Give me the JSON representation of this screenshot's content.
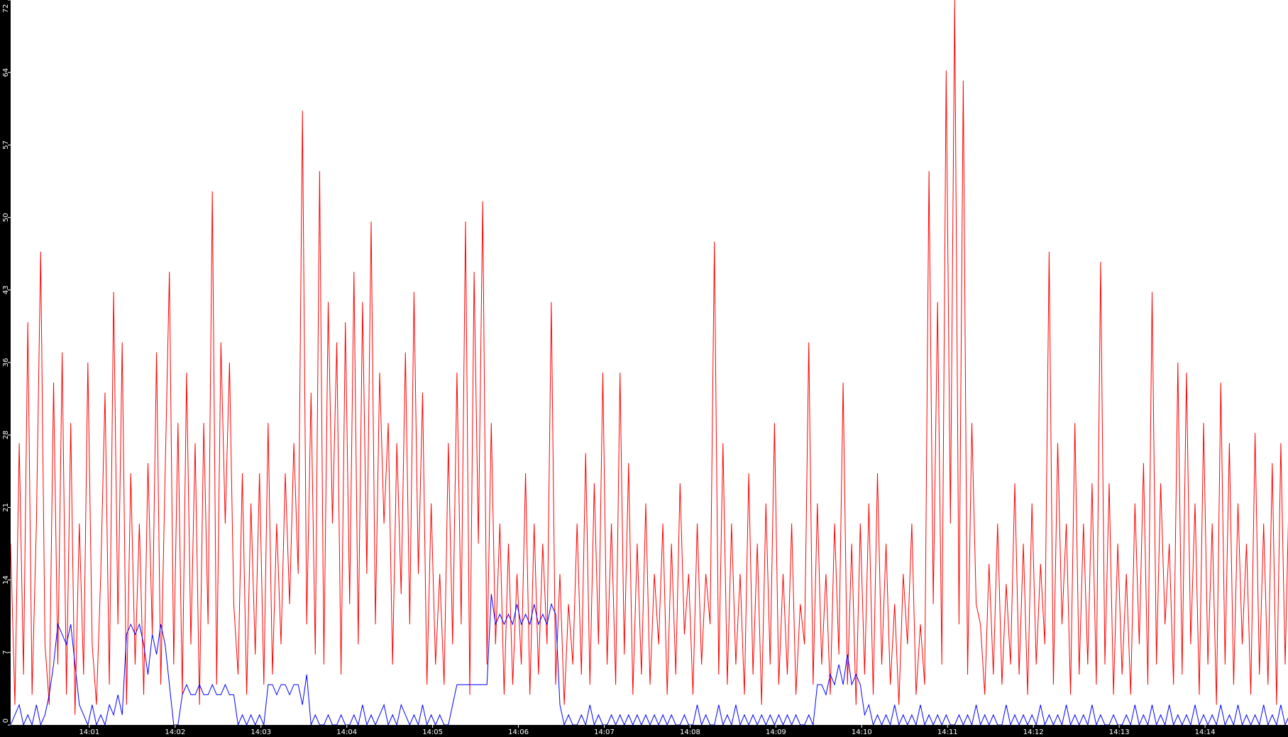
{
  "chart_data": {
    "type": "line",
    "title": "",
    "xlabel": "",
    "ylabel": "",
    "background": "#ffffff",
    "axis_background": "#000000",
    "grid": false,
    "legend": "none",
    "xlim": [
      "14:00:05",
      "14:14:58"
    ],
    "ylim": [
      0,
      72
    ],
    "x_tick_labels": [
      "14:01",
      "14:02",
      "14:03",
      "14:04",
      "14:05",
      "14:06",
      "14:07",
      "14:08",
      "14:09",
      "14:10",
      "14:11",
      "14:12",
      "14:13",
      "14:14"
    ],
    "y_tick_labels": [
      "0",
      "7",
      "14",
      "21",
      "28",
      "36",
      "43",
      "50",
      "57",
      "64",
      "72"
    ],
    "x": {
      "start": "14:00:05",
      "step_seconds": 3
    },
    "series": [
      {
        "color": "#ff0000",
        "values": [
          18,
          2,
          28,
          5,
          40,
          3,
          20,
          47,
          8,
          2,
          34,
          6,
          37,
          3,
          30,
          1,
          20,
          5,
          36,
          8,
          2,
          15,
          33,
          4,
          43,
          10,
          38,
          2,
          25,
          6,
          20,
          3,
          26,
          9,
          37,
          4,
          25,
          45,
          6,
          30,
          3,
          35,
          8,
          28,
          2,
          30,
          10,
          53,
          4,
          38,
          20,
          36,
          12,
          5,
          25,
          3,
          22,
          7,
          25,
          4,
          30,
          5,
          20,
          8,
          25,
          12,
          28,
          15,
          61,
          10,
          33,
          7,
          55,
          6,
          42,
          20,
          38,
          5,
          40,
          12,
          45,
          8,
          42,
          15,
          50,
          10,
          35,
          20,
          30,
          6,
          28,
          13,
          37,
          10,
          43,
          15,
          33,
          4,
          22,
          6,
          15,
          4,
          28,
          8,
          35,
          10,
          50,
          3,
          45,
          18,
          52,
          6,
          30,
          8,
          20,
          3,
          18,
          4,
          15,
          6,
          25,
          3,
          20,
          5,
          18,
          8,
          42,
          4,
          15,
          2,
          12,
          6,
          20,
          5,
          27,
          4,
          24,
          8,
          35,
          6,
          20,
          4,
          35,
          7,
          26,
          3,
          18,
          5,
          22,
          4,
          15,
          8,
          20,
          3,
          18,
          5,
          24,
          9,
          15,
          3,
          20,
          6,
          15,
          10,
          48,
          5,
          28,
          4,
          20,
          6,
          15,
          3,
          25,
          5,
          18,
          2,
          22,
          6,
          30,
          4,
          15,
          5,
          20,
          3,
          12,
          8,
          38,
          4,
          22,
          6,
          15,
          3,
          20,
          7,
          34,
          4,
          18,
          2,
          20,
          5,
          22,
          3,
          25,
          6,
          18,
          4,
          12,
          2,
          15,
          8,
          20,
          3,
          10,
          4,
          55,
          12,
          42,
          6,
          65,
          20,
          72,
          10,
          64,
          5,
          30,
          12,
          10,
          3,
          16,
          5,
          20,
          4,
          14,
          6,
          24,
          5,
          18,
          3,
          22,
          6,
          16,
          8,
          47,
          4,
          28,
          10,
          20,
          3,
          30,
          5,
          20,
          6,
          24,
          4,
          46,
          6,
          24,
          3,
          18,
          5,
          15,
          3,
          22,
          8,
          26,
          4,
          43,
          6,
          24,
          10,
          18,
          4,
          36,
          5,
          35,
          8,
          22,
          3,
          30,
          6,
          20,
          2,
          34,
          6,
          28,
          4,
          22,
          8,
          18,
          3,
          29,
          5,
          20,
          4,
          26,
          2,
          28,
          6,
          25,
          4
        ]
      },
      {
        "color": "#0000ff",
        "values": [
          0,
          1,
          2,
          0,
          1,
          0,
          2,
          0,
          1,
          3,
          6,
          10,
          9,
          8,
          10,
          6,
          2,
          1,
          0,
          2,
          0,
          1,
          0,
          2,
          1,
          3,
          1,
          9,
          10,
          9,
          10,
          8,
          5,
          9,
          7,
          10,
          8,
          4,
          0,
          0,
          3,
          4,
          3,
          3,
          4,
          3,
          3,
          4,
          3,
          3,
          4,
          3,
          3,
          0,
          1,
          0,
          1,
          0,
          1,
          0,
          4,
          4,
          3,
          4,
          4,
          3,
          4,
          4,
          2,
          5,
          0,
          1,
          0,
          0,
          1,
          0,
          0,
          1,
          0,
          0,
          1,
          0,
          2,
          0,
          1,
          0,
          1,
          2,
          0,
          1,
          0,
          2,
          1,
          0,
          1,
          0,
          2,
          0,
          1,
          0,
          1,
          0,
          0,
          2,
          4,
          4,
          4,
          4,
          4,
          4,
          4,
          4,
          13,
          10,
          11,
          10,
          11,
          10,
          12,
          10,
          11,
          10,
          12,
          10,
          11,
          10,
          12,
          11,
          2,
          0,
          1,
          0,
          0,
          1,
          0,
          2,
          0,
          1,
          0,
          0,
          1,
          0,
          1,
          0,
          1,
          0,
          1,
          0,
          1,
          0,
          1,
          0,
          1,
          0,
          1,
          0,
          0,
          1,
          0,
          0,
          2,
          0,
          1,
          0,
          0,
          2,
          0,
          1,
          0,
          2,
          0,
          1,
          0,
          1,
          0,
          1,
          0,
          1,
          0,
          1,
          0,
          1,
          0,
          1,
          0,
          0,
          1,
          0,
          4,
          4,
          3,
          5,
          4,
          6,
          4,
          7,
          4,
          5,
          4,
          1,
          2,
          0,
          1,
          0,
          1,
          0,
          2,
          0,
          1,
          0,
          1,
          0,
          2,
          0,
          1,
          0,
          1,
          0,
          1,
          0,
          0,
          1,
          0,
          1,
          0,
          2,
          0,
          1,
          0,
          1,
          0,
          0,
          2,
          0,
          1,
          0,
          1,
          0,
          1,
          0,
          2,
          0,
          1,
          0,
          1,
          0,
          2,
          0,
          1,
          0,
          1,
          0,
          2,
          0,
          1,
          0,
          0,
          1,
          0,
          0,
          1,
          0,
          2,
          0,
          1,
          0,
          2,
          0,
          1,
          0,
          2,
          0,
          1,
          0,
          1,
          0,
          2,
          0,
          1,
          0,
          1,
          0,
          2,
          0,
          1,
          0,
          2,
          0,
          1,
          0,
          1,
          0,
          2,
          0,
          1,
          0,
          2,
          0,
          1,
          0
        ]
      }
    ]
  }
}
